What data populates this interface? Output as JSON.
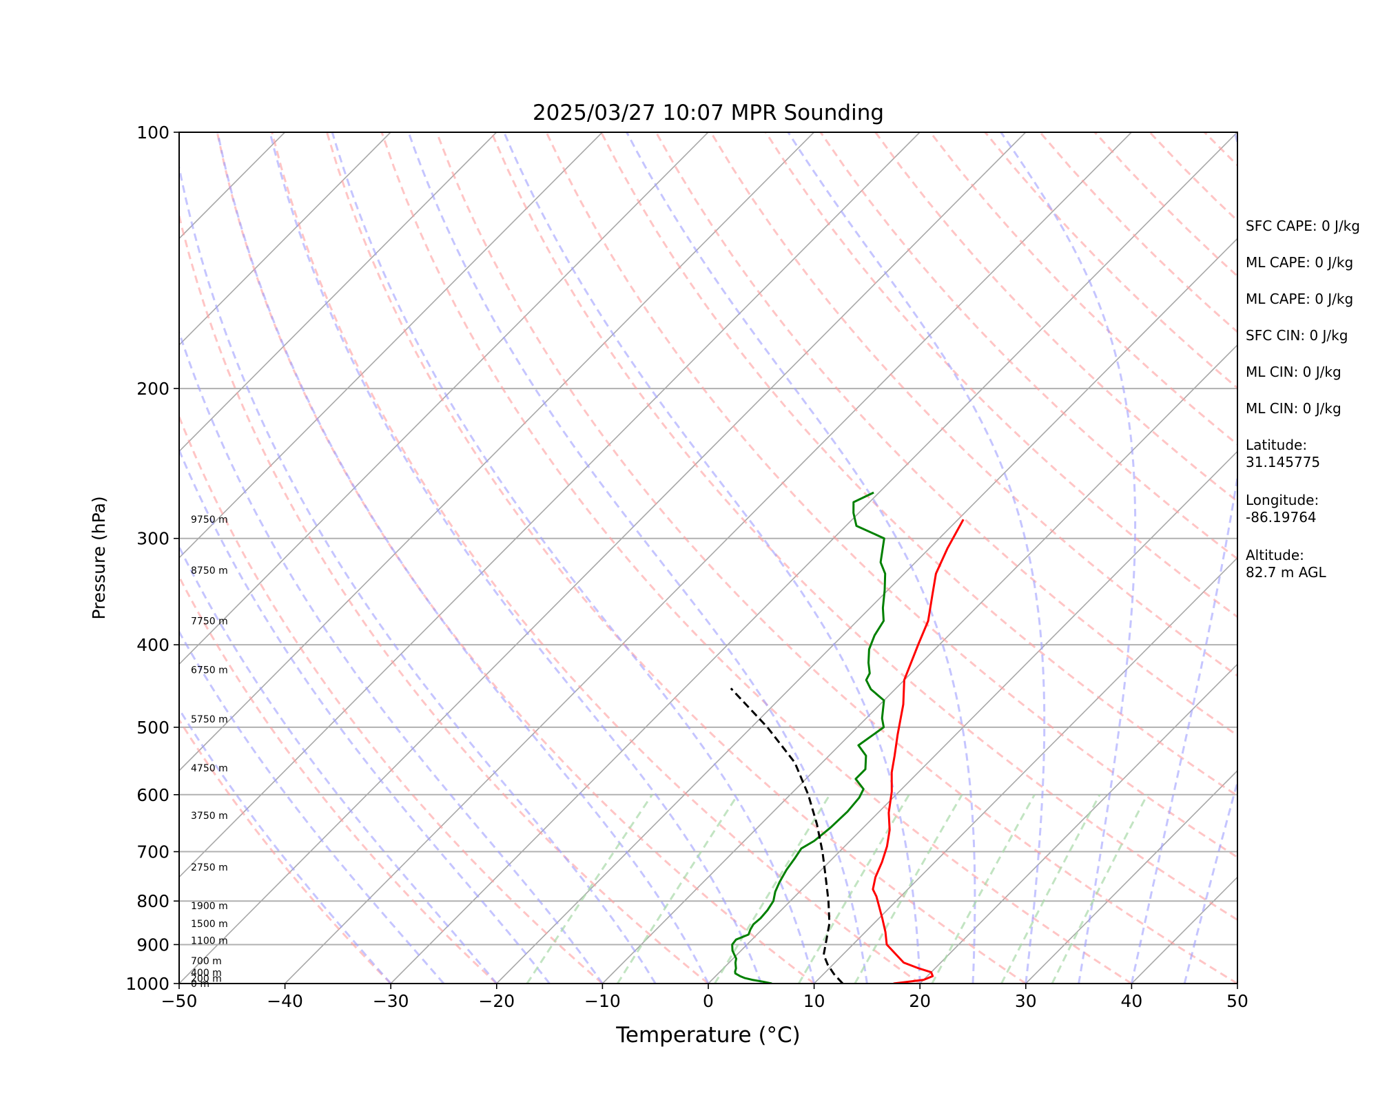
{
  "chart_data": {
    "type": "line",
    "title": "2025/03/27 10:07 MPR Sounding",
    "xlabel": "Temperature (°C)",
    "ylabel": "Pressure (hPa)",
    "xlim": [
      -50,
      50
    ],
    "ylim": [
      1000,
      100
    ],
    "y_scale": "log",
    "x_ticks": [
      -50,
      -40,
      -30,
      -20,
      -10,
      0,
      10,
      20,
      30,
      40,
      50
    ],
    "x_tick_labels": [
      "−50",
      "−40",
      "−30",
      "−20",
      "−10",
      "0",
      "10",
      "20",
      "30",
      "40",
      "50"
    ],
    "y_ticks": [
      100,
      200,
      300,
      400,
      500,
      600,
      700,
      800,
      900,
      1000
    ],
    "y_tick_labels": [
      "100",
      "200",
      "300",
      "400",
      "500",
      "600",
      "700",
      "800",
      "900",
      "1000"
    ],
    "grid": true,
    "height_labels": [
      {
        "p": 1000,
        "text": "0 m"
      },
      {
        "p": 986,
        "text": "200 m"
      },
      {
        "p": 971,
        "text": "400 m"
      },
      {
        "p": 940,
        "text": "700 m"
      },
      {
        "p": 890,
        "text": "1100 m"
      },
      {
        "p": 850,
        "text": "1500 m"
      },
      {
        "p": 810,
        "text": "1900 m"
      },
      {
        "p": 730,
        "text": "2750 m"
      },
      {
        "p": 635,
        "text": "3750 m"
      },
      {
        "p": 558,
        "text": "4750 m"
      },
      {
        "p": 489,
        "text": "5750 m"
      },
      {
        "p": 428,
        "text": "6750 m"
      },
      {
        "p": 375,
        "text": "7750 m"
      },
      {
        "p": 327,
        "text": "8750 m"
      },
      {
        "p": 285,
        "text": "9750 m"
      }
    ],
    "series": [
      {
        "role": "temperature",
        "color": "#ff0000",
        "x": [
          17.5,
          20.0,
          20.5,
          20.0,
          18.5,
          16.5,
          13.2,
          11.9,
          10.4,
          8.8,
          7.7,
          6.7,
          5.8,
          5.0,
          4.0,
          2.7,
          1.0,
          -0.7,
          -2.5,
          -3.8,
          -5.5,
          -7.8,
          -10.0,
          -12.0,
          -13.3,
          -15.3,
          -17.0,
          -18.3,
          -19.5
        ],
        "y": [
          1000,
          990,
          980,
          970,
          960,
          945,
          900,
          870,
          840,
          810,
          790,
          775,
          750,
          720,
          690,
          660,
          630,
          595,
          565,
          540,
          510,
          470,
          440,
          400,
          375,
          350,
          330,
          308,
          285
        ]
      },
      {
        "role": "dewpoint",
        "color": "#008000",
        "x": [
          6.0,
          5.0,
          3.8,
          2.9,
          2.3,
          1.6,
          1.4,
          1.2,
          0.6,
          0.3,
          -0.8,
          -1.4,
          -1.5,
          -0.8,
          -1.1,
          -1.3,
          -1.2,
          -1.3,
          -1.6,
          -2.3,
          -2.8,
          -3.3,
          -3.6,
          -3.9,
          -3.4,
          -3.1,
          -3.0,
          -3.2,
          -3.6,
          -5.3,
          -5.3,
          -6.5,
          -8.2,
          -7.5,
          -8.5,
          -10.0,
          -12.3,
          -13.6,
          -13.9,
          -15.0,
          -16.2,
          -17.0,
          -17.5,
          -18.8,
          -20.3,
          -21.8,
          -23.3,
          -25.2,
          -29.0,
          -30.5,
          -31.5,
          -30.5
        ],
        "y": [
          1000,
          995,
          990,
          985,
          980,
          973,
          968,
          960,
          945,
          935,
          915,
          900,
          888,
          876,
          864,
          852,
          838,
          820,
          800,
          780,
          760,
          735,
          712,
          694,
          680,
          656,
          628,
          605,
          591,
          575,
          560,
          540,
          525,
          500,
          488,
          465,
          451,
          440,
          432,
          420,
          405,
          390,
          375,
          362,
          345,
          330,
          320,
          300,
          290,
          280,
          272,
          265
        ]
      },
      {
        "role": "parcel",
        "color": "#000000",
        "dash": true,
        "x": [
          12.7,
          11.0,
          9.5,
          8.2,
          5.8,
          3.6,
          1.1,
          -1.6,
          -4.7,
          -8.3,
          -12.6,
          -18.5,
          -25.6
        ],
        "y": [
          1000,
          975,
          950,
          925,
          850,
          800,
          750,
          700,
          650,
          600,
          550,
          500,
          450
        ]
      }
    ]
  },
  "stats": {
    "sfc_cape": "SFC CAPE: 0 J/kg",
    "ml_cape_1": "ML CAPE: 0 J/kg",
    "ml_cape_2": "ML CAPE: 0 J/kg",
    "sfc_cin": "SFC CIN: 0 J/kg",
    "ml_cin_1": "ML CIN: 0 J/kg",
    "ml_cin_2": "ML CIN: 0 J/kg",
    "latitude_label": "Latitude:",
    "latitude_value": "31.145775",
    "longitude_label": "Longitude:",
    "longitude_value": "-86.19764",
    "altitude_label": "Altitude:",
    "altitude_value": "82.7 m AGL"
  }
}
